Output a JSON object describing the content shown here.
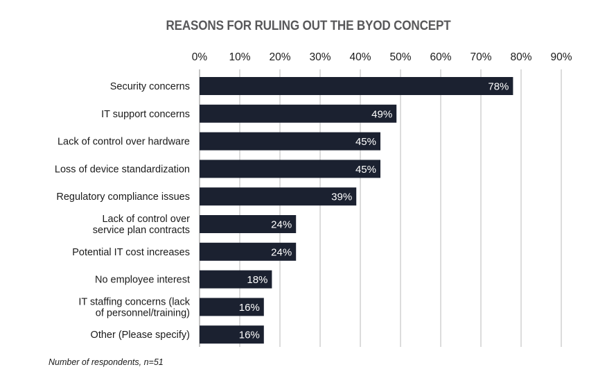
{
  "chart_data": {
    "type": "bar",
    "orientation": "horizontal",
    "title": "REASONS FOR RULING OUT THE BYOD CONCEPT",
    "categories": [
      "Security concerns",
      "IT support concerns",
      "Lack of control over hardware",
      "Loss of device standardization",
      "Regulatory compliance issues",
      "Lack of control over\nservice plan contracts",
      "Potential IT cost increases",
      "No employee interest",
      "IT staffing concerns (lack\nof personnel/training)",
      "Other (Please specify)"
    ],
    "values": [
      78,
      49,
      45,
      45,
      39,
      24,
      24,
      18,
      16,
      16
    ],
    "data_labels": [
      "78%",
      "49%",
      "45%",
      "45%",
      "39%",
      "24%",
      "24%",
      "18%",
      "16%",
      "16%"
    ],
    "xlim": [
      0,
      90
    ],
    "xticks": [
      "0%",
      "10%",
      "20%",
      "30%",
      "40%",
      "50%",
      "60%",
      "70%",
      "80%",
      "90%"
    ],
    "x_axis_position": "top",
    "grid": true,
    "bar_color": "#1b2130",
    "grid_color": "#b9b9b9"
  },
  "footnote": "Number of respondents, n=51"
}
